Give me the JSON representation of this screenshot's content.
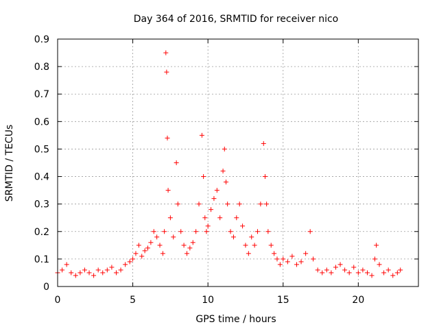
{
  "chart_data": {
    "type": "scatter",
    "title": "Day 364 of 2016, SRMTID for receiver nico",
    "xlabel": "GPS time / hours",
    "ylabel": "SRMTID / TECUs",
    "xlim": [
      0,
      24
    ],
    "ylim": [
      0,
      0.9
    ],
    "xticks": [
      0,
      5,
      10,
      15,
      20
    ],
    "xtick_labels": [
      "0",
      "5",
      "10",
      "15",
      "20"
    ],
    "yticks": [
      0,
      0.1,
      0.2,
      0.3,
      0.4,
      0.5,
      0.6,
      0.7,
      0.8,
      0.9
    ],
    "ytick_labels": [
      "0",
      "0.1",
      "0.2",
      "0.3",
      "0.4",
      "0.5",
      "0.6",
      "0.7",
      "0.8",
      "0.9"
    ],
    "grid": true,
    "marker": "+",
    "series_color": "#ff0000",
    "series": [
      {
        "name": "SRMTID",
        "x": [
          0.0,
          0.3,
          0.6,
          0.9,
          1.2,
          1.5,
          1.8,
          2.1,
          2.4,
          2.7,
          3.0,
          3.3,
          3.6,
          3.9,
          4.2,
          4.5,
          4.8,
          5.0,
          5.2,
          5.4,
          5.6,
          5.8,
          6.0,
          6.2,
          6.4,
          6.6,
          6.8,
          7.0,
          7.1,
          7.2,
          7.25,
          7.3,
          7.35,
          7.5,
          7.7,
          7.9,
          8.0,
          8.2,
          8.4,
          8.6,
          8.8,
          9.0,
          9.2,
          9.4,
          9.6,
          9.7,
          9.8,
          9.9,
          10.0,
          10.2,
          10.4,
          10.6,
          10.8,
          11.0,
          11.1,
          11.2,
          11.3,
          11.5,
          11.7,
          11.9,
          12.1,
          12.3,
          12.5,
          12.7,
          12.9,
          13.1,
          13.3,
          13.5,
          13.7,
          13.8,
          13.9,
          14.0,
          14.2,
          14.4,
          14.6,
          14.8,
          15.0,
          15.3,
          15.6,
          15.9,
          16.2,
          16.5,
          16.8,
          17.0,
          17.3,
          17.6,
          17.9,
          18.2,
          18.5,
          18.8,
          19.1,
          19.4,
          19.7,
          20.0,
          20.3,
          20.6,
          20.9,
          21.1,
          21.2,
          21.4,
          21.7,
          22.0,
          22.3,
          22.6,
          22.8
        ],
        "y": [
          0.05,
          0.06,
          0.08,
          0.05,
          0.04,
          0.05,
          0.06,
          0.05,
          0.04,
          0.06,
          0.05,
          0.06,
          0.07,
          0.05,
          0.06,
          0.08,
          0.09,
          0.1,
          0.12,
          0.15,
          0.11,
          0.13,
          0.14,
          0.16,
          0.2,
          0.18,
          0.15,
          0.12,
          0.2,
          0.85,
          0.78,
          0.54,
          0.35,
          0.25,
          0.18,
          0.45,
          0.3,
          0.2,
          0.15,
          0.12,
          0.14,
          0.16,
          0.2,
          0.3,
          0.55,
          0.4,
          0.25,
          0.2,
          0.22,
          0.28,
          0.32,
          0.35,
          0.25,
          0.42,
          0.5,
          0.38,
          0.3,
          0.2,
          0.18,
          0.25,
          0.3,
          0.22,
          0.15,
          0.12,
          0.18,
          0.15,
          0.2,
          0.3,
          0.52,
          0.4,
          0.3,
          0.2,
          0.15,
          0.12,
          0.1,
          0.08,
          0.1,
          0.09,
          0.11,
          0.08,
          0.09,
          0.12,
          0.2,
          0.1,
          0.06,
          0.05,
          0.06,
          0.05,
          0.07,
          0.08,
          0.06,
          0.05,
          0.07,
          0.05,
          0.06,
          0.05,
          0.04,
          0.1,
          0.15,
          0.08,
          0.05,
          0.06,
          0.04,
          0.05,
          0.06
        ]
      }
    ]
  }
}
